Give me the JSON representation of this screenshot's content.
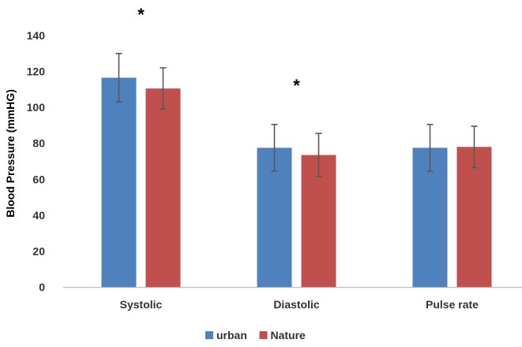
{
  "chart_data": {
    "type": "bar",
    "title": "",
    "xlabel": "",
    "ylabel": "Blood Pressure (mmHG)",
    "ylim": [
      0,
      140
    ],
    "yticks": [
      0,
      20,
      40,
      60,
      80,
      100,
      120,
      140
    ],
    "grid": false,
    "legend_position": "bottom",
    "categories": [
      "Systolic",
      "Diastolic",
      "Pulse rate"
    ],
    "series": [
      {
        "name": "urban",
        "color": "#4f81bd",
        "values": [
          116.5,
          77.5,
          77.5
        ],
        "error": [
          13.5,
          13.0,
          13.0
        ]
      },
      {
        "name": "Nature",
        "color": "#c0504d",
        "values": [
          110.5,
          73.5,
          78.0
        ],
        "error": [
          11.5,
          12.0,
          11.5
        ]
      }
    ],
    "annotations": [
      {
        "text": "*",
        "category": "Systolic"
      },
      {
        "text": "*",
        "category": "Diastolic"
      }
    ]
  }
}
